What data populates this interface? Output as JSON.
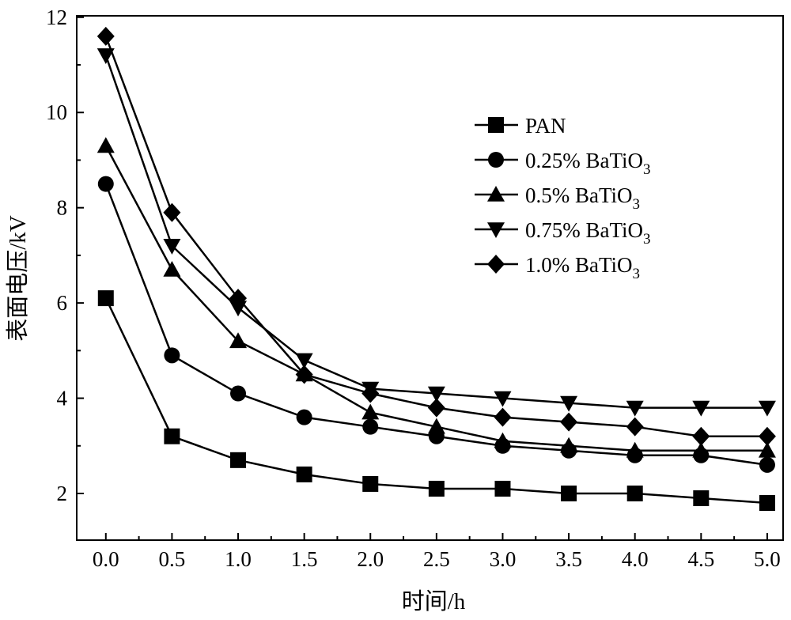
{
  "chart_data": {
    "type": "line",
    "title": "",
    "xlabel": "时间/h",
    "ylabel": "表面电压/kV",
    "xlim": [
      -0.22,
      5.12
    ],
    "ylim": [
      1.02,
      12.03
    ],
    "x": [
      0.0,
      0.5,
      1.0,
      1.5,
      2.0,
      2.5,
      3.0,
      3.5,
      4.0,
      4.5,
      5.0
    ],
    "xticks": [
      "0.0",
      "0.5",
      "1.0",
      "1.5",
      "2.0",
      "2.5",
      "3.0",
      "3.5",
      "4.0",
      "4.5",
      "5.0"
    ],
    "yticks": [
      2,
      4,
      6,
      8,
      10,
      12
    ],
    "grid": false,
    "legend_position": "upper-right",
    "series": [
      {
        "name": "PAN",
        "sub": "",
        "marker": "square",
        "values": [
          6.1,
          3.2,
          2.7,
          2.4,
          2.2,
          2.1,
          2.1,
          2.0,
          2.0,
          1.9,
          1.8
        ]
      },
      {
        "name": "0.25% BaTiO",
        "sub": "3",
        "marker": "circle",
        "values": [
          8.5,
          4.9,
          4.1,
          3.6,
          3.4,
          3.2,
          3.0,
          2.9,
          2.8,
          2.8,
          2.6
        ]
      },
      {
        "name": "0.5% BaTiO",
        "sub": "3",
        "marker": "triangle-up",
        "values": [
          9.3,
          6.7,
          5.2,
          4.5,
          3.7,
          3.4,
          3.1,
          3.0,
          2.9,
          2.9,
          2.9
        ]
      },
      {
        "name": "0.75% BaTiO",
        "sub": "3",
        "marker": "triangle-down",
        "values": [
          11.2,
          7.2,
          5.9,
          4.8,
          4.2,
          4.1,
          4.0,
          3.9,
          3.8,
          3.8,
          3.8
        ]
      },
      {
        "name": "1.0% BaTiO",
        "sub": "3",
        "marker": "diamond",
        "values": [
          11.6,
          7.9,
          6.1,
          4.5,
          4.1,
          3.8,
          3.6,
          3.5,
          3.4,
          3.2,
          3.2
        ]
      }
    ]
  }
}
